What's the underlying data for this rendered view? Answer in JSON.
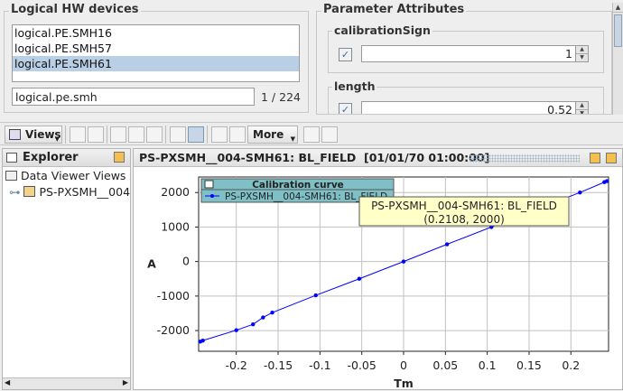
{
  "hw_panel": {
    "title": "Logical HW devices",
    "items": [
      {
        "label": "logical.PE.SMH16",
        "selected": false
      },
      {
        "label": "logical.PE.SMH57",
        "selected": false
      },
      {
        "label": "logical.PE.SMH61",
        "selected": true
      }
    ],
    "filter_value": "logical.pe.smh",
    "count": "1 / 224"
  },
  "param_panel": {
    "title": "Parameter Attributes",
    "calibration_sign": {
      "label": "calibrationSign",
      "value": "1"
    },
    "length": {
      "label": "length",
      "value": "0.52"
    }
  },
  "toolbar": {
    "views_label": "Views",
    "more_label": "More"
  },
  "explorer": {
    "title": "Explorer",
    "root": "Data Viewer Views",
    "child": "PS-PXSMH__004"
  },
  "viewer": {
    "title": "PS-PXSMH__004-SMH61: BL_FIELD  [01/01/70 01:00:00]"
  },
  "colors": {
    "series": "#0000ff",
    "legend_bg": "#7fc0c6",
    "tooltip_bg": "#ffffc8",
    "selection": "#b8cfe5"
  },
  "chart_data": {
    "type": "line",
    "legend_title": "Calibration curve",
    "legend_entry": "PS-PXSMH__004-SMH61: BL_FIELD",
    "tooltip_line1": "PS-PXSMH__004-SMH61: BL_FIELD",
    "tooltip_line2": "(0.2108, 2000)",
    "xlabel": "Tm",
    "ylabel": "A",
    "xlim": [
      -0.245,
      0.245
    ],
    "ylim": [
      -2600,
      2450
    ],
    "xticks": [
      -0.2,
      -0.15,
      -0.1,
      -0.05,
      0,
      0.05,
      0.1,
      0.15,
      0.2
    ],
    "xtick_labels": [
      "-0.2",
      "-0.15",
      "-0.1",
      "-0.05",
      "0",
      "0.05",
      "0.1",
      "0.15",
      "0.2"
    ],
    "yticks": [
      -2000,
      -1000,
      0,
      1000,
      2000
    ],
    "ytick_labels": [
      "-2000",
      "-1000",
      "0",
      "1000",
      "2000"
    ],
    "grid": true,
    "series": [
      {
        "name": "PS-PXSMH__004-SMH61: BL_FIELD",
        "x": [
          -0.243,
          -0.24,
          -0.2,
          -0.18,
          -0.168,
          -0.157,
          -0.105,
          -0.053,
          0,
          0.052,
          0.105,
          0.158,
          0.2108,
          0.24,
          0.243
        ],
        "y": [
          -2320,
          -2290,
          -1990,
          -1820,
          -1620,
          -1480,
          -980,
          -500,
          0,
          500,
          1000,
          1510,
          2000,
          2300,
          2330
        ]
      }
    ]
  }
}
